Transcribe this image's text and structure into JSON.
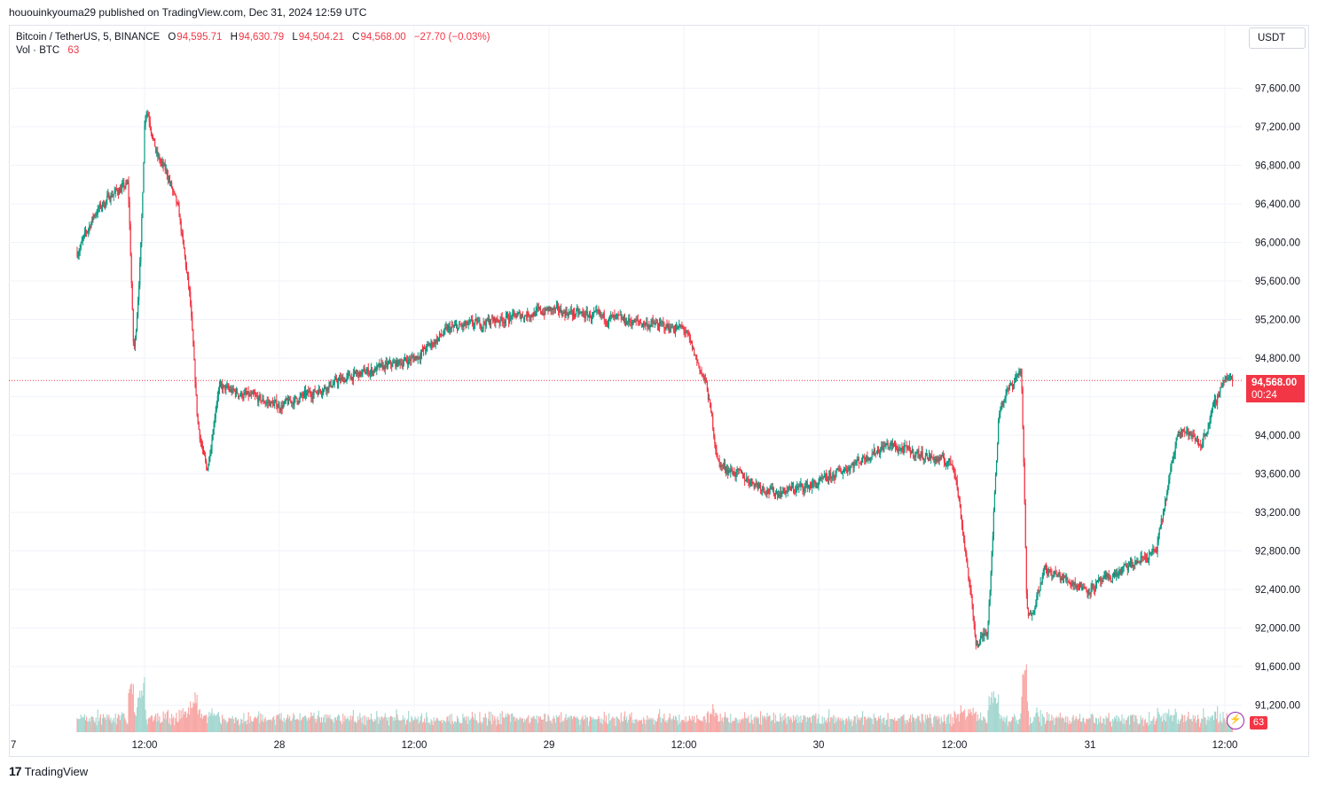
{
  "publisher_line": "hououinkyouma29 published on TradingView.com, Dec 31, 2024 12:59 UTC",
  "legend": {
    "symbol": "Bitcoin / TetherUS, 5, BINANCE",
    "o_label": "O",
    "o_value": "94,595.71",
    "h_label": "H",
    "h_value": "94,630.79",
    "l_label": "L",
    "l_value": "94,504.21",
    "c_label": "C",
    "c_value": "94,568.00",
    "change": "−27.70 (−0.03%)",
    "vol_label": "Vol · BTC",
    "vol_value": "63"
  },
  "currency_button": "USDT",
  "last_price": {
    "value": "94,568.00",
    "countdown": "00:24"
  },
  "volume_tag": "63",
  "footer_brand": "TradingView",
  "colors": {
    "up": "#089981",
    "down": "#f23645",
    "vol_up": "#a6d8d1",
    "vol_down": "#f7a9a7",
    "grid": "#f0f3fa"
  },
  "chart_data": {
    "type": "candlestick",
    "interval": "5",
    "y_axis_ticks": [
      "97,600.00",
      "97,200.00",
      "96,800.00",
      "96,400.00",
      "96,000.00",
      "95,600.00",
      "95,200.00",
      "94,800.00",
      "94,400.00",
      "94,000.00",
      "93,600.00",
      "93,200.00",
      "92,800.00",
      "92,400.00",
      "92,000.00",
      "91,600.00",
      "91,200.00"
    ],
    "ylim": [
      91000,
      98200
    ],
    "x_axis_ticks": [
      "7",
      "12:00",
      "28",
      "12:00",
      "29",
      "12:00",
      "30",
      "12:00",
      "31",
      "12:00"
    ],
    "price_path": [
      {
        "t": "Dec 27 06:00",
        "price": 95900
      },
      {
        "t": "Dec 27 07:30",
        "price": 96300
      },
      {
        "t": "Dec 27 09:00",
        "price": 96500
      },
      {
        "t": "Dec 27 10:30",
        "price": 96600
      },
      {
        "t": "Dec 27 11:00",
        "price": 94700
      },
      {
        "t": "Dec 27 11:40",
        "price": 96100
      },
      {
        "t": "Dec 27 12:00",
        "price": 97500
      },
      {
        "t": "Dec 27 13:00",
        "price": 96900
      },
      {
        "t": "Dec 27 14:00",
        "price": 96700
      },
      {
        "t": "Dec 27 15:00",
        "price": 96300
      },
      {
        "t": "Dec 27 16:00",
        "price": 95400
      },
      {
        "t": "Dec 27 16:40",
        "price": 94100
      },
      {
        "t": "Dec 27 17:30",
        "price": 93600
      },
      {
        "t": "Dec 27 18:30",
        "price": 94500
      },
      {
        "t": "Dec 28 00:00",
        "price": 94300
      },
      {
        "t": "Dec 28 06:00",
        "price": 94600
      },
      {
        "t": "Dec 28 12:00",
        "price": 94800
      },
      {
        "t": "Dec 28 15:00",
        "price": 95100
      },
      {
        "t": "Dec 29 00:00",
        "price": 95300
      },
      {
        "t": "Dec 29 06:00",
        "price": 95200
      },
      {
        "t": "Dec 29 12:00",
        "price": 95100
      },
      {
        "t": "Dec 29 14:00",
        "price": 94500
      },
      {
        "t": "Dec 29 15:00",
        "price": 93700
      },
      {
        "t": "Dec 29 20:00",
        "price": 93400
      },
      {
        "t": "Dec 30 00:00",
        "price": 93500
      },
      {
        "t": "Dec 30 06:00",
        "price": 93900
      },
      {
        "t": "Dec 30 12:00",
        "price": 93700
      },
      {
        "t": "Dec 30 13:00",
        "price": 92800
      },
      {
        "t": "Dec 30 14:00",
        "price": 91800
      },
      {
        "t": "Dec 30 15:00",
        "price": 92000
      },
      {
        "t": "Dec 30 16:00",
        "price": 94300
      },
      {
        "t": "Dec 30 18:00",
        "price": 94700
      },
      {
        "t": "Dec 30 18:30",
        "price": 92000
      },
      {
        "t": "Dec 30 20:00",
        "price": 92600
      },
      {
        "t": "Dec 31 00:00",
        "price": 92400
      },
      {
        "t": "Dec 31 06:00",
        "price": 92800
      },
      {
        "t": "Dec 31 08:00",
        "price": 94100
      },
      {
        "t": "Dec 31 10:00",
        "price": 93900
      },
      {
        "t": "Dec 31 12:00",
        "price": 94600
      },
      {
        "t": "Dec 31 12:55",
        "price": 94568
      }
    ]
  }
}
